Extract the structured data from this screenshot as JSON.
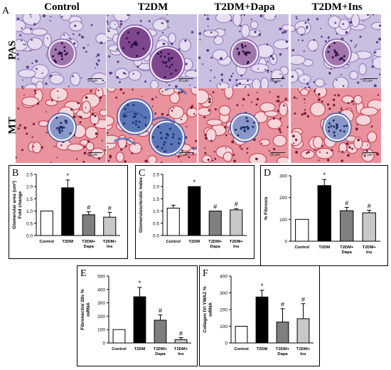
{
  "figure": {
    "panel_a_letter": "A",
    "columns": [
      "Control",
      "T2DM",
      "T2DM+Dapa",
      "T2DM+Ins"
    ],
    "rows": [
      "PAS",
      "MT"
    ],
    "scale_bar_label": "50 μm"
  },
  "colors": {
    "control": "#ffffff",
    "t2dm": "#000000",
    "dapa": "#7f7f7f",
    "ins": "#c8c8c8",
    "pas_bg": "#c9bfe0",
    "pas_dark": "#6a2a7a",
    "mt_bg": "#e8939d",
    "mt_blue": "#3d5fae"
  },
  "chart_data": [
    {
      "panel": "B",
      "type": "bar",
      "categories": [
        "Control",
        "T2DM",
        "T2DM+\nDapa",
        "T2DM+\nIns"
      ],
      "values": [
        1.0,
        1.95,
        0.85,
        0.75
      ],
      "errors": [
        0.0,
        0.32,
        0.12,
        0.2
      ],
      "marks": [
        "",
        "*",
        "#",
        "#"
      ],
      "ylabel": "Glomerular area (um²)\nFold change",
      "ylim": [
        0,
        2.5
      ],
      "yticks": [
        0.0,
        0.5,
        1.0,
        1.5,
        2.0,
        2.5
      ],
      "ytick_labels": [
        "0.0",
        "0.5",
        "1.0",
        "1.5",
        "2.0",
        "2.5"
      ]
    },
    {
      "panel": "C",
      "type": "bar",
      "categories": [
        "Control",
        "T2DM",
        "T2DM+\nDapa",
        "T2DM+\nIns"
      ],
      "values": [
        1.12,
        2.0,
        1.0,
        1.05
      ],
      "errors": [
        0.12,
        0.0,
        0.0,
        0.05
      ],
      "marks": [
        "",
        "*",
        "#",
        "#"
      ],
      "ylabel": "Glomerulosclerotic Index",
      "ylim": [
        0,
        2.5
      ],
      "yticks": [
        0.0,
        0.5,
        1.0,
        1.5,
        2.0,
        2.5
      ],
      "ytick_labels": [
        "0.0",
        "0.5",
        "1.0",
        "1.5",
        "2.0",
        "2.5"
      ]
    },
    {
      "panel": "D",
      "type": "bar",
      "categories": [
        "Control",
        "T2DM",
        "T2DM+\nDapa",
        "T2DM+\nIns"
      ],
      "values": [
        100,
        255,
        140,
        130
      ],
      "errors": [
        0,
        28,
        15,
        12
      ],
      "marks": [
        "",
        "*",
        "#",
        "#"
      ],
      "ylabel": "% Fibrosis",
      "ylim": [
        0,
        300
      ],
      "yticks": [
        0,
        100,
        200,
        300
      ],
      "ytick_labels": [
        "0",
        "100",
        "200",
        "300"
      ]
    },
    {
      "panel": "E",
      "type": "bar",
      "categories": [
        "Control",
        "T2DM",
        "T2DM+\nDapa",
        "T2DM+\nIns"
      ],
      "values": [
        100,
        345,
        170,
        25
      ],
      "errors": [
        0,
        70,
        40,
        15
      ],
      "marks": [
        "",
        "*",
        "#",
        "#"
      ],
      "ylabel": "Fibronectin/ 28s %\nmRNA",
      "ylim": [
        0,
        500
      ],
      "yticks": [
        0,
        100,
        200,
        300,
        400,
        500
      ],
      "ytick_labels": [
        "0",
        "100",
        "200",
        "300",
        "400",
        "500"
      ]
    },
    {
      "panel": "F",
      "type": "bar",
      "categories": [
        "Control",
        "T2DM",
        "T2DM+\nDapa",
        "T2DM+\nIns"
      ],
      "values": [
        100,
        275,
        125,
        145
      ],
      "errors": [
        0,
        40,
        80,
        90
      ],
      "marks": [
        "",
        "*",
        "#",
        "#"
      ],
      "ylabel": "Collagen IV/ YWAZ %\nmRNA",
      "ylim": [
        0,
        400
      ],
      "yticks": [
        0,
        100,
        200,
        300,
        400
      ],
      "ytick_labels": [
        "0",
        "100",
        "200",
        "300",
        "400"
      ]
    }
  ]
}
